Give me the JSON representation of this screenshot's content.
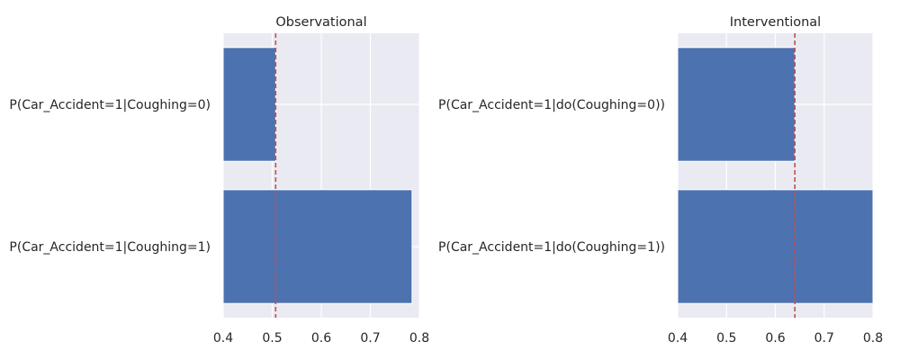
{
  "chart_data": [
    {
      "type": "bar",
      "orientation": "horizontal",
      "title": "Observational",
      "categories": [
        "P(Car_Accident=1|Coughing=0)",
        "P(Car_Accident=1|Coughing=1)"
      ],
      "values": [
        0.507,
        0.785
      ],
      "reference_line": 0.507,
      "xlim": [
        0.4,
        0.8
      ],
      "xticks": [
        0.4,
        0.5,
        0.6,
        0.7,
        0.8
      ],
      "xtick_labels": [
        "0.4",
        "0.5",
        "0.6",
        "0.7",
        "0.8"
      ],
      "xlabel": "",
      "ylabel": "",
      "grid": true,
      "colors": {
        "bar": "#4c72b0",
        "reference_line": "#c44e52",
        "background": "#eaeaf2"
      }
    },
    {
      "type": "bar",
      "orientation": "horizontal",
      "title": "Interventional",
      "categories": [
        "P(Car_Accident=1|do(Coughing=0))",
        "P(Car_Accident=1|do(Coughing=1))"
      ],
      "values": [
        0.64,
        0.8
      ],
      "reference_line": 0.64,
      "xlim": [
        0.4,
        0.8
      ],
      "xticks": [
        0.4,
        0.5,
        0.6,
        0.7,
        0.8
      ],
      "xtick_labels": [
        "0.4",
        "0.5",
        "0.6",
        "0.7",
        "0.8"
      ],
      "xlabel": "",
      "ylabel": "",
      "grid": true,
      "colors": {
        "bar": "#4c72b0",
        "reference_line": "#c44e52",
        "background": "#eaeaf2"
      }
    }
  ]
}
